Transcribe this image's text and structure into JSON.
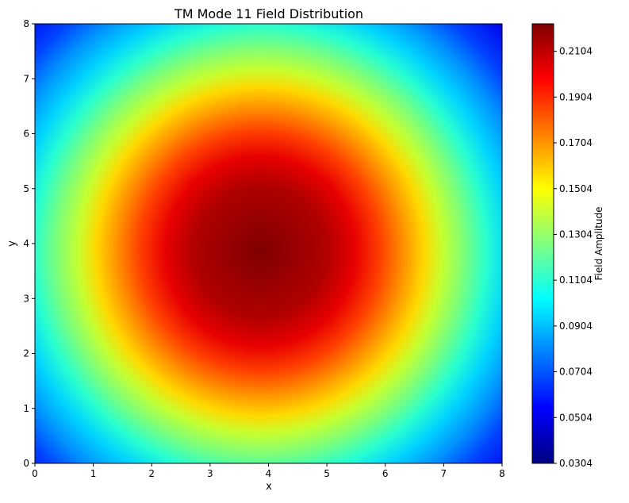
{
  "chart_data": {
    "type": "heatmap",
    "title": "TM Mode 11 Field Distribution",
    "xlabel": "x",
    "ylabel": "y",
    "xlim": [
      0,
      8
    ],
    "ylim": [
      0,
      8
    ],
    "x_ticks": [
      "0",
      "1",
      "2",
      "3",
      "4",
      "5",
      "6",
      "7",
      "8"
    ],
    "y_ticks": [
      "0",
      "1",
      "2",
      "3",
      "4",
      "5",
      "6",
      "7",
      "8"
    ],
    "colormap": "jet",
    "value_range": [
      0.0304,
      0.2224
    ],
    "peak": {
      "x": 3.86,
      "y": 3.86,
      "value": 0.2224
    },
    "colorbar": {
      "label": "Field Amplitude",
      "ticks": [
        "0.0304",
        "0.0504",
        "0.0704",
        "0.0904",
        "0.1104",
        "0.1304",
        "0.1504",
        "0.1704",
        "0.1904",
        "0.2104"
      ],
      "tick_values": [
        0.0304,
        0.0504,
        0.0704,
        0.0904,
        0.1104,
        0.1304,
        0.1504,
        0.1704,
        0.1904,
        0.2104
      ]
    },
    "grid": false
  }
}
